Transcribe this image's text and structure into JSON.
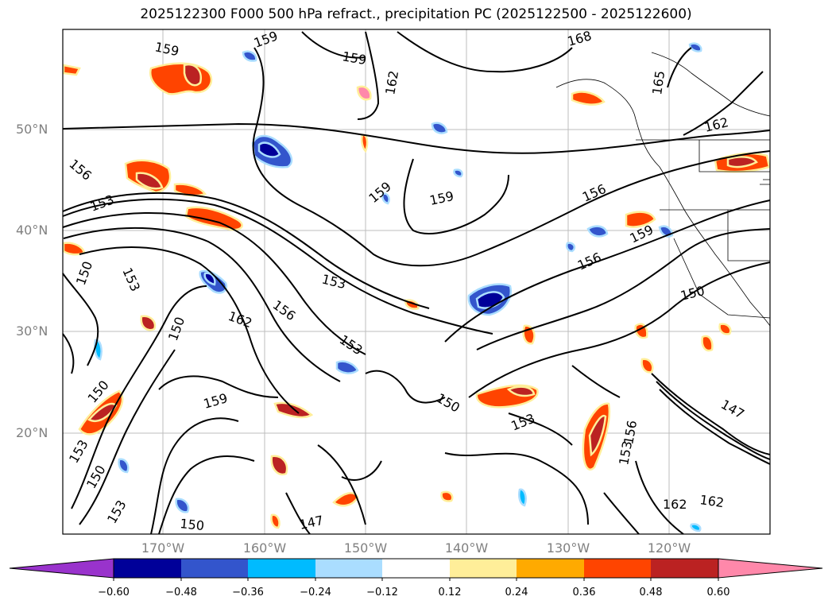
{
  "title": "2025122300 F000 500 hPa refract., precipitation PC (2025122500 - 2025122600)",
  "map": {
    "lat_labels": [
      "50°N",
      "40°N",
      "30°N",
      "20°N"
    ],
    "lon_labels": [
      "170°W",
      "160°W",
      "150°W",
      "140°W",
      "130°W",
      "120°W"
    ],
    "contour_labels": [
      "159",
      "159",
      "159",
      "162",
      "168",
      "165",
      "162",
      "156",
      "153",
      "159",
      "159",
      "156",
      "159",
      "150",
      "153",
      "156",
      "162",
      "156",
      "153",
      "150",
      "159",
      "150",
      "153",
      "150",
      "153",
      "150",
      "147",
      "153",
      "162",
      "162",
      "147",
      "156",
      "150",
      "153",
      "153",
      "150"
    ]
  },
  "colorbar": {
    "ticks": [
      "−0.60",
      "−0.48",
      "−0.36",
      "−0.24",
      "−0.12",
      "0.12",
      "0.24",
      "0.36",
      "0.48",
      "0.60"
    ],
    "colors": [
      "#9933cc",
      "#000099",
      "#3355cc",
      "#00bbff",
      "#aaddff",
      "#ffffff",
      "#ffee99",
      "#ffaa00",
      "#ff4400",
      "#bb2222",
      "#ff88aa"
    ]
  }
}
